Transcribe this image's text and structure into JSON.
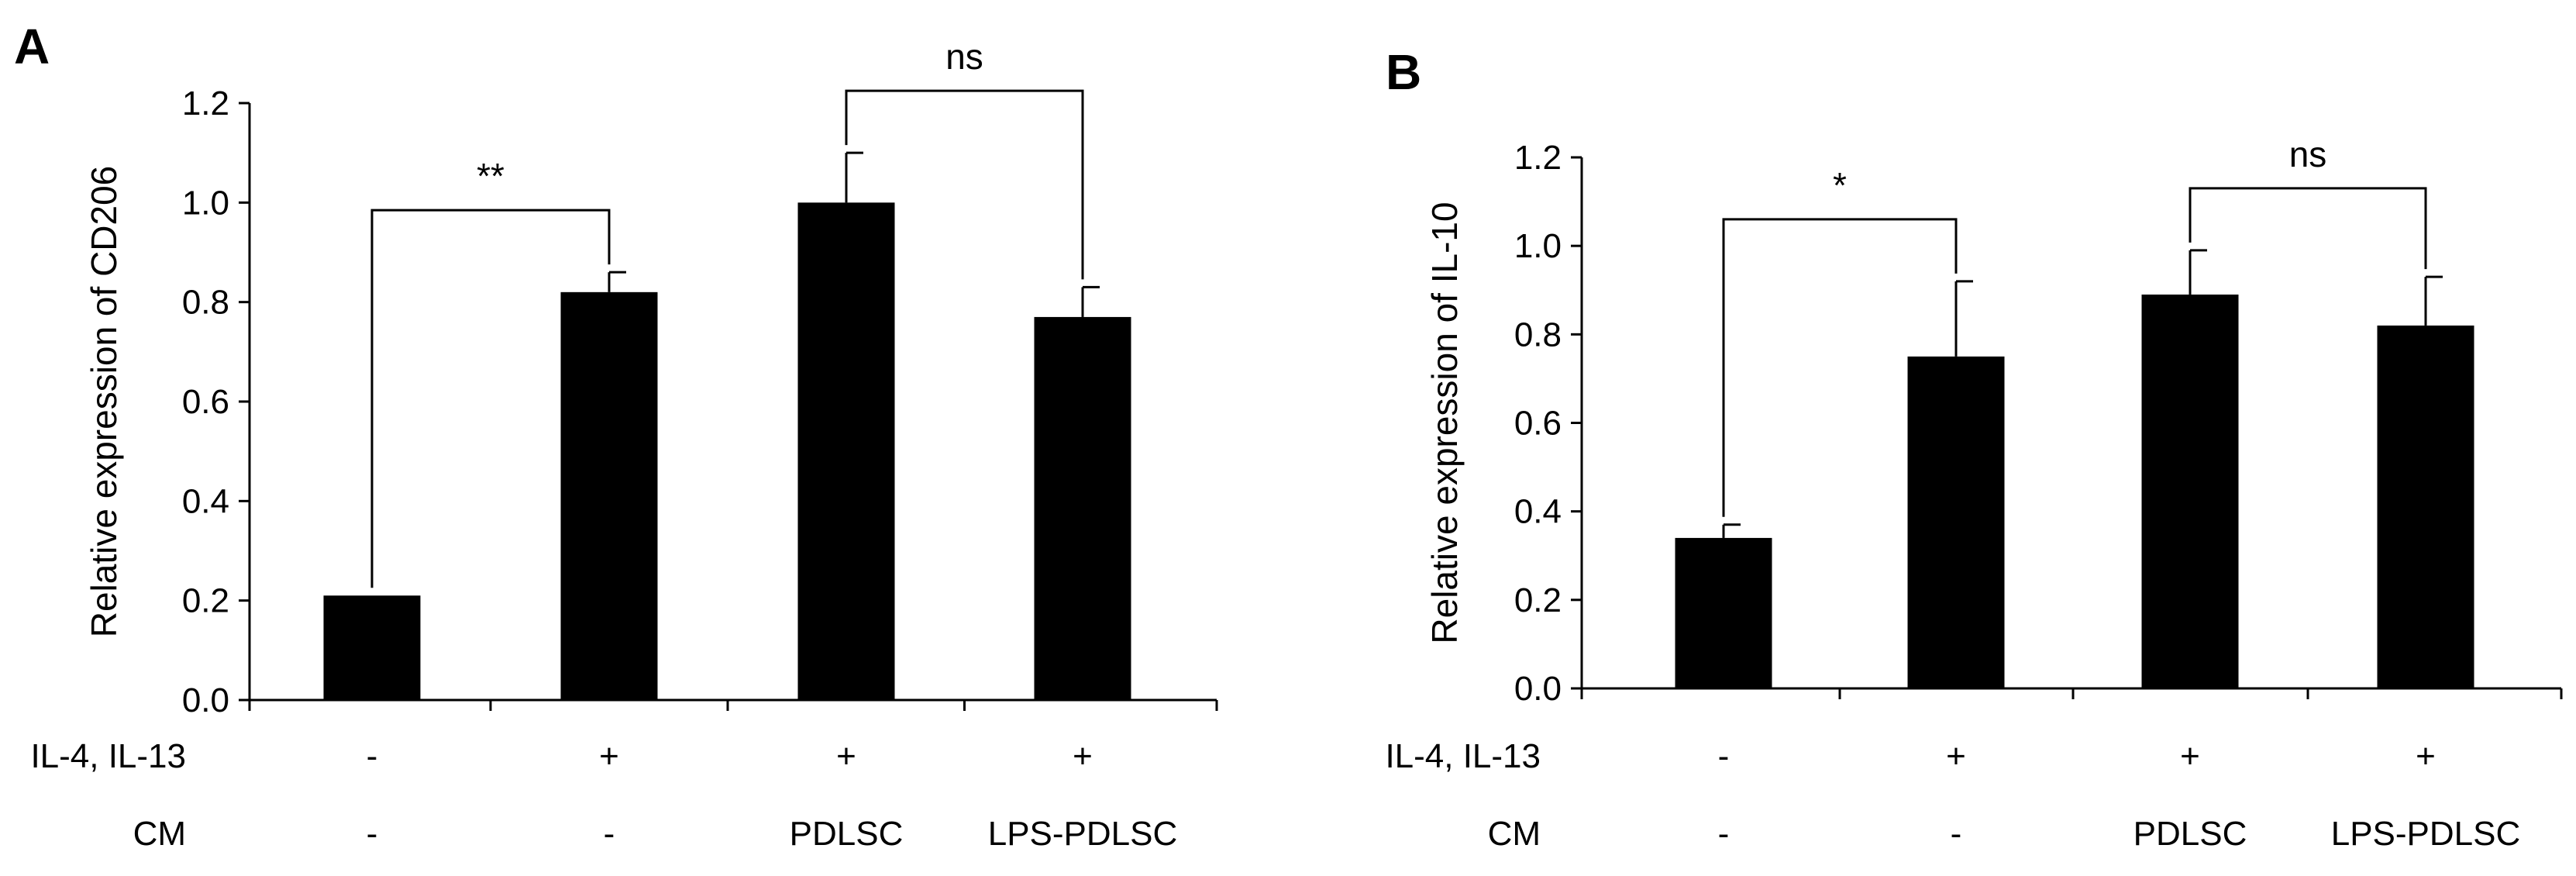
{
  "chart_data": [
    {
      "panel": "A",
      "type": "bar",
      "ylabel": "Relative expression of CD206",
      "ylim": [
        0,
        1.2
      ],
      "yticks": [
        "0.0",
        "0.2",
        "0.4",
        "0.6",
        "0.8",
        "1.0",
        "1.2"
      ],
      "values": [
        0.21,
        0.82,
        1.0,
        0.77
      ],
      "errors": [
        0.0,
        0.04,
        0.1,
        0.06
      ],
      "color": "#000000",
      "conditions": [
        {
          "label": "IL-4, IL-13",
          "values": [
            "-",
            "+",
            "+",
            "+"
          ]
        },
        {
          "label": "CM",
          "values": [
            "-",
            "-",
            "PDLSC",
            "LPS-PDLSC"
          ]
        }
      ],
      "annotations": [
        {
          "from": 0,
          "to": 1,
          "text": "**"
        },
        {
          "from": 2,
          "to": 3,
          "text": "ns"
        }
      ]
    },
    {
      "panel": "B",
      "type": "bar",
      "ylabel": "Relative expression of IL-10",
      "ylim": [
        0,
        1.2
      ],
      "yticks": [
        "0.0",
        "0.2",
        "0.4",
        "0.6",
        "0.8",
        "1.0",
        "1.2"
      ],
      "values": [
        0.34,
        0.75,
        0.89,
        0.82
      ],
      "errors": [
        0.03,
        0.17,
        0.1,
        0.11
      ],
      "color": "#000000",
      "conditions": [
        {
          "label": "IL-4, IL-13",
          "values": [
            "-",
            "+",
            "+",
            "+"
          ]
        },
        {
          "label": "CM",
          "values": [
            "-",
            "-",
            "PDLSC",
            "LPS-PDLSC"
          ]
        }
      ],
      "annotations": [
        {
          "from": 0,
          "to": 1,
          "text": "*"
        },
        {
          "from": 2,
          "to": 3,
          "text": "ns"
        }
      ]
    }
  ]
}
